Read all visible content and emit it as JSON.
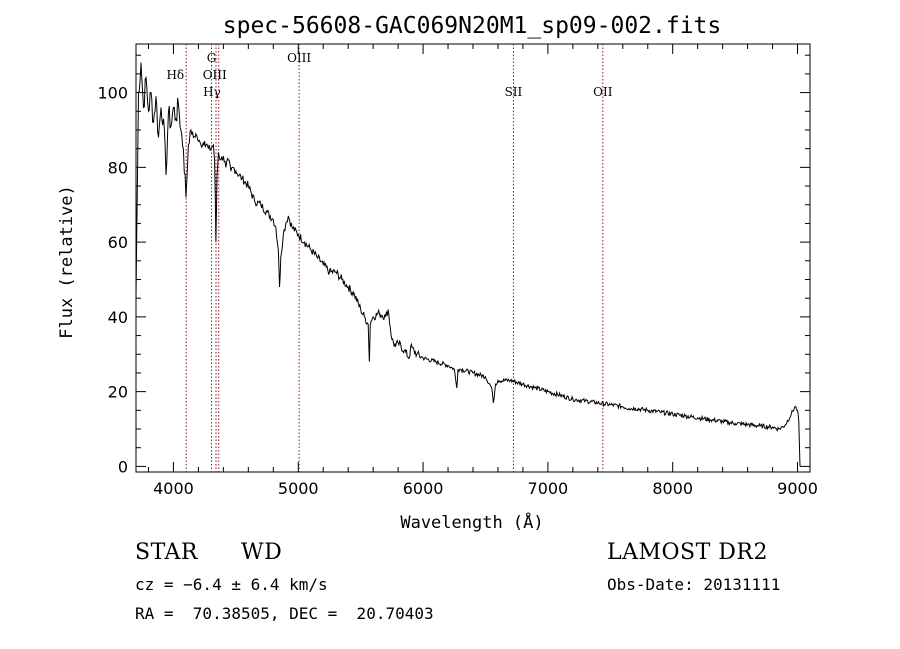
{
  "chart_data": {
    "type": "line",
    "title": "spec-56608-GAC069N20M1_sp09-002.fits",
    "xlabel": "Wavelength (Å)",
    "ylabel": "Flux (relative)",
    "xlim": [
      3700,
      9100
    ],
    "ylim": [
      -1.5,
      113
    ],
    "x_ticks": [
      4000,
      5000,
      6000,
      7000,
      8000,
      9000
    ],
    "y_ticks": [
      0,
      20,
      40,
      60,
      80,
      100
    ],
    "grid": false,
    "line_color": "#000000",
    "marker_color": "#8b1a1a",
    "series": [
      {
        "x": [
          3700,
          3720,
          3740,
          3760,
          3780,
          3800,
          3820,
          3840,
          3860,
          3880,
          3900,
          3920,
          3940,
          3960,
          3980,
          4000,
          4020,
          4040,
          4060,
          4080,
          4100,
          4120,
          4140,
          4160,
          4180,
          4200,
          4220,
          4250,
          4280,
          4300,
          4320,
          4330,
          4340,
          4350,
          4360,
          4380,
          4400,
          4420,
          4440,
          4460,
          4480,
          4500,
          4550,
          4600,
          4650,
          4700,
          4750,
          4800,
          4820,
          4840,
          4850,
          4860,
          4880,
          4900,
          4920,
          4950,
          5000,
          5050,
          5100,
          5150,
          5200,
          5250,
          5300,
          5350,
          5400,
          5450,
          5500,
          5530,
          5560,
          5570,
          5577,
          5585,
          5600,
          5650,
          5700,
          5720,
          5750,
          5780,
          5800,
          5850,
          5890,
          5900,
          5950,
          6000,
          6100,
          6200,
          6250,
          6270,
          6280,
          6300,
          6400,
          6500,
          6550,
          6563,
          6580,
          6600,
          6700,
          6800,
          6900,
          7000,
          7100,
          7200,
          7300,
          7400,
          7500,
          7600,
          7650,
          7700,
          7800,
          7900,
          8000,
          8100,
          8200,
          8300,
          8400,
          8500,
          8600,
          8700,
          8800,
          8850,
          8900,
          8950,
          8980,
          9000,
          9010,
          9020
        ],
        "y": [
          45,
          100,
          108,
          96,
          104,
          95,
          100,
          92,
          99,
          88,
          96,
          93,
          78,
          95,
          91,
          96,
          93,
          97,
          90,
          85,
          72,
          86,
          90,
          88,
          89,
          87,
          86,
          87,
          85,
          85,
          86,
          82,
          60,
          78,
          84,
          82,
          83,
          80,
          82,
          79,
          80,
          79,
          77,
          75,
          71,
          70,
          68,
          66,
          64,
          58,
          48,
          56,
          62,
          65,
          67,
          64,
          62,
          60,
          58,
          56,
          54,
          52,
          52,
          50,
          48,
          46,
          42,
          40,
          38,
          28,
          38,
          39,
          40,
          41,
          40,
          42,
          34,
          32,
          33,
          31,
          29,
          32,
          30,
          29,
          28,
          27,
          26,
          21,
          26,
          26,
          25,
          24,
          21,
          17,
          22,
          23,
          23,
          22,
          21,
          20,
          19,
          18,
          17.5,
          17,
          16.5,
          16,
          15.5,
          15.5,
          15,
          14.5,
          14,
          13.5,
          13,
          12.5,
          12,
          11.5,
          11.2,
          10.8,
          10.5,
          10,
          11,
          14,
          16,
          15,
          12,
          0
        ]
      }
    ],
    "line_markers": [
      {
        "wavelength": 4102,
        "label": "Hδ"
      },
      {
        "wavelength": 4305,
        "label": "G"
      },
      {
        "wavelength": 4341,
        "label": "Hγ"
      },
      {
        "wavelength": 4363,
        "label": "OIII"
      },
      {
        "wavelength": 5007,
        "label": "OIII"
      },
      {
        "wavelength": 6724,
        "label": "SII"
      },
      {
        "wavelength": 7440,
        "label": "OII"
      }
    ]
  },
  "info": {
    "class_label": "STAR",
    "subclass_label": "WD",
    "survey": "LAMOST DR2",
    "cz": "cz = −6.4 ± 6.4 km/s",
    "obs_date": "Obs-Date: 20131111",
    "coords": "RA =  70.38505, DEC =  20.70403"
  }
}
